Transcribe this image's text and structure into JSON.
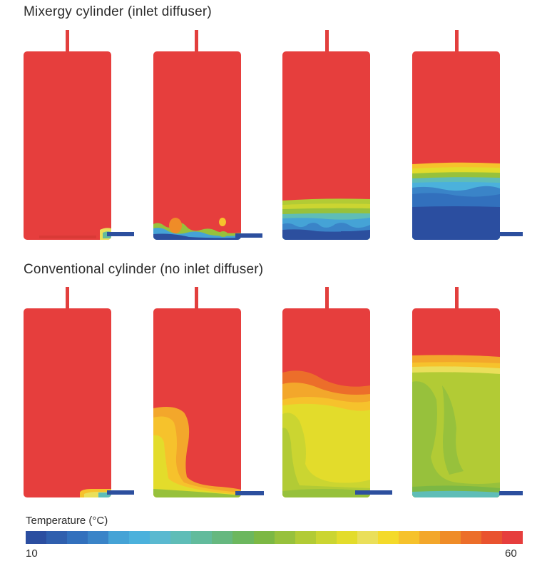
{
  "sections": {
    "top_title": "Mixergy cylinder (inlet diffuser)",
    "bottom_title": "Conventional cylinder (no inlet diffuser)"
  },
  "legend": {
    "title": "Temperature (°C)",
    "min_label": "10",
    "max_label": "60",
    "colors": [
      "#2b4ea0",
      "#2f5fae",
      "#3270bd",
      "#3a84c8",
      "#45a3d6",
      "#4bb1dc",
      "#5ab9d0",
      "#5fbdb7",
      "#62bb9c",
      "#66b87f",
      "#6cb75e",
      "#7cb844",
      "#97c13c",
      "#b2cb35",
      "#cbd531",
      "#e3dc2b",
      "#eadf5a",
      "#f4da2a",
      "#f6c22c",
      "#f3a72b",
      "#ef8c28",
      "#ec6e2a",
      "#e9532f",
      "#e63e3d"
    ]
  },
  "palette": {
    "hot": "#e63e3d",
    "pipe": "#e23f3d",
    "outlet": "#2c4f9e"
  }
}
